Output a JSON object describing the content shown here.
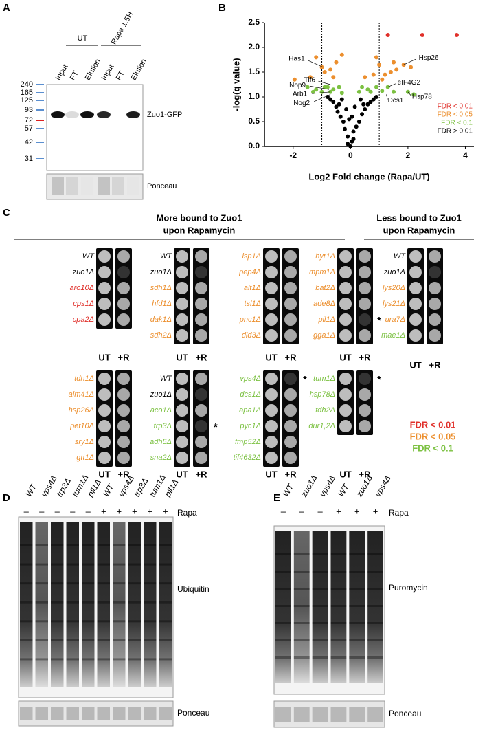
{
  "panel_a": {
    "letter": "A",
    "group_labels": [
      "UT",
      "Rapa 1.5H"
    ],
    "lanes": [
      "Input",
      "FT",
      "Elution",
      "Input",
      "FT",
      "Elution"
    ],
    "markers": [
      240,
      165,
      125,
      93,
      72,
      57,
      42,
      31
    ],
    "band_label": "Zuo1-GFP",
    "loading_label": "Ponceau"
  },
  "panel_b": {
    "letter": "B"
  },
  "chart_data": {
    "type": "scatter",
    "xlabel": "Log2 Fold change (Rapa/UT)",
    "ylabel": "-log(q value)",
    "xlim": [
      -3,
      4.3
    ],
    "ylim": [
      0,
      2.5
    ],
    "xticks": [
      -2,
      0,
      2,
      4
    ],
    "yticks": [
      {
        "value": 0,
        "label": "0.0"
      },
      {
        "value": 0.5,
        "label": "0.5"
      },
      {
        "value": 1,
        "label": "1.0"
      },
      {
        "value": 1.5,
        "label": "1.5"
      },
      {
        "value": 2,
        "label": "2.0"
      },
      {
        "value": 2.5,
        "label": "2.5"
      }
    ],
    "vlines": [
      -1,
      1
    ],
    "legend": "right",
    "series": [
      {
        "name": "FDR < 0.01",
        "color": "#e0302a",
        "x": [
          1.3,
          2.5,
          3.7
        ],
        "values": [
          2.25,
          2.25,
          2.25
        ]
      },
      {
        "name": "FDR < 0.05",
        "color": "#ec8f2e",
        "x": [
          -1.95,
          -1.2,
          -1.0,
          -0.9,
          -1.4,
          -0.7,
          -0.5,
          -0.6,
          -0.3,
          0.5,
          0.8,
          0.9,
          1.0,
          1.2,
          1.4,
          1.5,
          1.6,
          1.85,
          2.1,
          1.1
        ],
        "values": [
          1.35,
          1.8,
          1.6,
          1.5,
          1.4,
          1.55,
          1.7,
          1.4,
          1.85,
          1.4,
          1.45,
          1.8,
          1.65,
          1.45,
          1.5,
          1.7,
          1.55,
          1.65,
          1.6,
          1.35
        ]
      },
      {
        "name": "FDR < 0.1",
        "color": "#7cc142",
        "x": [
          -1.5,
          -1.2,
          -1.0,
          -0.8,
          -0.7,
          -0.6,
          -0.4,
          -0.3,
          0.3,
          0.4,
          0.6,
          0.7,
          0.9,
          1.1,
          1.3,
          1.5,
          2.0,
          2.2,
          -1.3,
          -0.9
        ],
        "values": [
          1.2,
          1.15,
          1.1,
          1.2,
          1.1,
          1.15,
          1.2,
          1.08,
          1.1,
          1.2,
          1.15,
          1.1,
          1.2,
          1.12,
          1.2,
          1.1,
          1.1,
          1.05,
          1.1,
          1.2
        ]
      },
      {
        "name": "FDR > 0.01",
        "color": "#000000",
        "x": [
          0,
          0.05,
          -0.1,
          0.1,
          -0.2,
          0.2,
          -0.25,
          0.3,
          -0.35,
          0.4,
          -0.45,
          0.5,
          -0.5,
          0.6,
          -0.6,
          0.7,
          -0.7,
          0.8,
          -0.3,
          0.35,
          -0.15,
          0.15,
          -0.05,
          0.05,
          -0.4,
          0.45,
          -0.8,
          0.9,
          -0.1,
          0.1
        ],
        "values": [
          0,
          0.1,
          0.2,
          0.3,
          0.35,
          0.4,
          0.5,
          0.5,
          0.6,
          0.65,
          0.7,
          0.75,
          0.8,
          0.85,
          0.9,
          0.9,
          0.95,
          0.95,
          0.95,
          0.95,
          0.75,
          0.8,
          0.55,
          0.6,
          0.85,
          0.85,
          1.0,
          1.0,
          0.05,
          0.15
        ]
      }
    ],
    "annotations": [
      {
        "text": "Has1",
        "x": -0.95,
        "y": 1.6
      },
      {
        "text": "Tif6",
        "x": -0.7,
        "y": 1.25
      },
      {
        "text": "Nop9",
        "x": -0.75,
        "y": 1.15
      },
      {
        "text": "Arb1",
        "x": -0.7,
        "y": 1.1
      },
      {
        "text": "Nog2",
        "x": -0.7,
        "y": 1.05
      },
      {
        "text": "Hsp26",
        "x": 1.85,
        "y": 1.65
      },
      {
        "text": "eIF4G2",
        "x": 1.3,
        "y": 1.2
      },
      {
        "text": "Hsp78",
        "x": 2.0,
        "y": 1.1
      },
      {
        "text": "Dcs1",
        "x": 1.25,
        "y": 1.05
      }
    ]
  },
  "panel_c": {
    "letter": "C",
    "titles": [
      "More bound to Zuo1",
      "upon Rapamycin"
    ],
    "titles_right": [
      "Less bound to Zuo1",
      "upon Rapamycin"
    ],
    "conditions": [
      "UT",
      "+R"
    ],
    "groups": [
      {
        "strains": [
          {
            "name": "WT",
            "color": "#000000"
          },
          {
            "name": "zuo1Δ",
            "color": "#000000"
          },
          {
            "name": "aro10Δ",
            "color": "#e0302a"
          },
          {
            "name": "cps1Δ",
            "color": "#e0302a"
          },
          {
            "name": "cpa2Δ",
            "color": "#e0302a"
          }
        ]
      },
      {
        "strains": [
          {
            "name": "WT",
            "color": "#000000"
          },
          {
            "name": "zuo1Δ",
            "color": "#000000"
          },
          {
            "name": "sdh1Δ",
            "color": "#ec8f2e"
          },
          {
            "name": "hfd1Δ",
            "color": "#ec8f2e"
          },
          {
            "name": "dak1Δ",
            "color": "#ec8f2e"
          },
          {
            "name": "sdh2Δ",
            "color": "#ec8f2e"
          }
        ]
      },
      {
        "strains": [
          {
            "name": "lsp1Δ",
            "color": "#ec8f2e"
          },
          {
            "name": "pep4Δ",
            "color": "#ec8f2e"
          },
          {
            "name": "alt1Δ",
            "color": "#ec8f2e"
          },
          {
            "name": "tsl1Δ",
            "color": "#ec8f2e"
          },
          {
            "name": "pnc1Δ",
            "color": "#ec8f2e"
          },
          {
            "name": "dld3Δ",
            "color": "#ec8f2e"
          }
        ]
      },
      {
        "strains": [
          {
            "name": "hyr1Δ",
            "color": "#ec8f2e"
          },
          {
            "name": "mpm1Δ",
            "color": "#ec8f2e"
          },
          {
            "name": "bat2Δ",
            "color": "#ec8f2e"
          },
          {
            "name": "ade8Δ",
            "color": "#ec8f2e"
          },
          {
            "name": "pil1Δ",
            "color": "#ec8f2e",
            "note": "*"
          },
          {
            "name": "gga1Δ",
            "color": "#ec8f2e"
          }
        ]
      },
      {
        "strains": [
          {
            "name": "WT",
            "color": "#000000"
          },
          {
            "name": "zuo1Δ",
            "color": "#000000"
          },
          {
            "name": "lys20Δ",
            "color": "#ec8f2e"
          },
          {
            "name": "lys21Δ",
            "color": "#ec8f2e"
          },
          {
            "name": "ura7Δ",
            "color": "#ec8f2e"
          },
          {
            "name": "mae1Δ",
            "color": "#7cc142"
          }
        ]
      },
      {
        "strains": [
          {
            "name": "tdh1Δ",
            "color": "#ec8f2e"
          },
          {
            "name": "aim41Δ",
            "color": "#ec8f2e"
          },
          {
            "name": "hsp26Δ",
            "color": "#ec8f2e"
          },
          {
            "name": "pet10Δ",
            "color": "#ec8f2e"
          },
          {
            "name": "sry1Δ",
            "color": "#ec8f2e"
          },
          {
            "name": "gtt1Δ",
            "color": "#ec8f2e"
          }
        ]
      },
      {
        "strains": [
          {
            "name": "WT",
            "color": "#000000"
          },
          {
            "name": "zuo1Δ",
            "color": "#000000"
          },
          {
            "name": "aco1Δ",
            "color": "#7cc142"
          },
          {
            "name": "trp3Δ",
            "color": "#7cc142",
            "note": "*"
          },
          {
            "name": "adh5Δ",
            "color": "#7cc142"
          },
          {
            "name": "sna2Δ",
            "color": "#7cc142"
          }
        ]
      },
      {
        "strains": [
          {
            "name": "vps4Δ",
            "color": "#7cc142",
            "note": "*"
          },
          {
            "name": "dcs1Δ",
            "color": "#7cc142"
          },
          {
            "name": "apa1Δ",
            "color": "#7cc142"
          },
          {
            "name": "pyc1Δ",
            "color": "#7cc142"
          },
          {
            "name": "fmp52Δ",
            "color": "#7cc142"
          },
          {
            "name": "tif4632Δ",
            "color": "#7cc142"
          }
        ]
      },
      {
        "strains": [
          {
            "name": "tum1Δ",
            "color": "#7cc142",
            "note": "*"
          },
          {
            "name": "hsp78Δ",
            "color": "#7cc142"
          },
          {
            "name": "tdh2Δ",
            "color": "#7cc142"
          },
          {
            "name": "dur1,2Δ",
            "color": "#7cc142"
          }
        ]
      }
    ],
    "legend": [
      {
        "text": "FDR < 0.01",
        "color": "#e0302a"
      },
      {
        "text": "FDR < 0.05",
        "color": "#ec8f2e"
      },
      {
        "text": "FDR < 0.1",
        "color": "#7cc142"
      }
    ]
  },
  "panel_d": {
    "letter": "D",
    "lanes": [
      "WT",
      "vps4Δ",
      "trp3Δ",
      "tum1Δ",
      "pil1Δ",
      "WT",
      "vps4Δ",
      "trp3Δ",
      "tum1Δ",
      "pil1Δ"
    ],
    "treatment": [
      "–",
      "–",
      "–",
      "–",
      "–",
      "+",
      "+",
      "+",
      "+",
      "+"
    ],
    "treatment_label": "Rapa",
    "blot_label": "Ubiquitin",
    "loading_label": "Ponceau"
  },
  "panel_e": {
    "letter": "E",
    "lanes": [
      "WT",
      "zuo1Δ",
      "vps4Δ",
      "WT",
      "zuo1Δ",
      "vps4Δ"
    ],
    "treatment": [
      "–",
      "–",
      "–",
      "+",
      "+",
      "+"
    ],
    "treatment_label": "Rapa",
    "blot_label": "Puromycin",
    "loading_label": "Ponceau"
  }
}
